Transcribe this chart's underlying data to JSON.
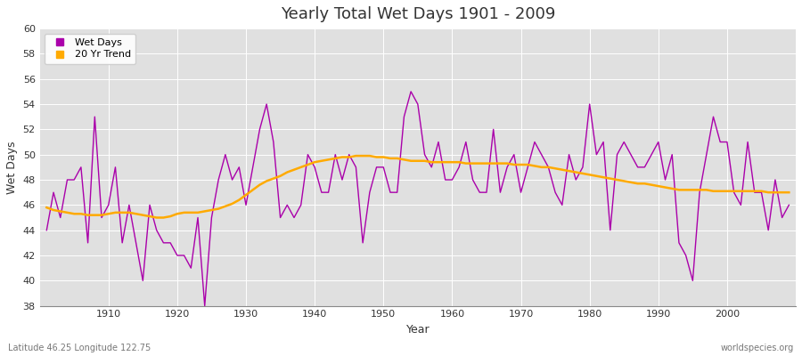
{
  "title": "Yearly Total Wet Days 1901 - 2009",
  "xlabel": "Year",
  "ylabel": "Wet Days",
  "footer_left": "Latitude 46.25 Longitude 122.75",
  "footer_right": "worldspecies.org",
  "ylim": [
    38,
    60
  ],
  "yticks": [
    38,
    40,
    42,
    44,
    46,
    48,
    50,
    52,
    54,
    56,
    58,
    60
  ],
  "xticks": [
    1910,
    1920,
    1930,
    1940,
    1950,
    1960,
    1970,
    1980,
    1990,
    2000
  ],
  "xlim": [
    1900,
    2010
  ],
  "line_color": "#aa00aa",
  "trend_color": "#ffaa00",
  "legend_wet": "Wet Days",
  "legend_trend": "20 Yr Trend",
  "bg_color": "#e0e0e0",
  "wet_days": [
    44,
    47,
    45,
    48,
    48,
    49,
    43,
    53,
    45,
    46,
    49,
    43,
    46,
    43,
    40,
    46,
    44,
    43,
    43,
    42,
    42,
    41,
    45,
    38,
    45,
    48,
    50,
    48,
    49,
    46,
    49,
    52,
    54,
    51,
    45,
    46,
    45,
    46,
    50,
    49,
    47,
    47,
    50,
    48,
    50,
    49,
    43,
    47,
    49,
    49,
    47,
    47,
    53,
    55,
    54,
    50,
    49,
    51,
    48,
    48,
    49,
    51,
    48,
    47,
    47,
    52,
    47,
    49,
    50,
    47,
    49,
    51,
    50,
    49,
    47,
    46,
    50,
    48,
    49,
    54,
    50,
    51,
    44,
    50,
    51,
    50,
    49,
    49,
    50,
    51,
    48,
    50,
    43,
    42,
    40,
    47,
    50,
    53,
    51,
    51,
    47,
    46,
    51,
    47,
    47,
    44,
    48,
    45,
    46
  ],
  "trend_years": [
    1901,
    1902,
    1903,
    1904,
    1905,
    1906,
    1907,
    1908,
    1909,
    1910,
    1911,
    1912,
    1913,
    1914,
    1915,
    1916,
    1917,
    1918,
    1919,
    1920,
    1921,
    1922,
    1923,
    1924,
    1925,
    1926,
    1927,
    1928,
    1929,
    1930,
    1931,
    1932,
    1933,
    1934,
    1935,
    1936,
    1937,
    1938,
    1939,
    1940,
    1941,
    1942,
    1943,
    1944,
    1945,
    1946,
    1947,
    1948,
    1949,
    1950,
    1951,
    1952,
    1953,
    1954,
    1955,
    1956,
    1957,
    1958,
    1959,
    1960,
    1961,
    1962,
    1963,
    1964,
    1965,
    1966,
    1967,
    1968,
    1969,
    1970,
    1971,
    1972,
    1973,
    1974,
    1975,
    1976,
    1977,
    1978,
    1979,
    1980,
    1981,
    1982,
    1983,
    1984,
    1985,
    1986,
    1987,
    1988,
    1989,
    1990,
    1991,
    1992,
    1993,
    1994,
    1995,
    1996,
    1997,
    1998,
    1999,
    2000,
    2001,
    2002,
    2003,
    2004,
    2005,
    2006,
    2007,
    2008,
    2009
  ],
  "trend_values": [
    45.8,
    45.6,
    45.5,
    45.4,
    45.3,
    45.3,
    45.2,
    45.2,
    45.2,
    45.3,
    45.4,
    45.4,
    45.4,
    45.3,
    45.2,
    45.1,
    45.0,
    45.0,
    45.1,
    45.3,
    45.4,
    45.4,
    45.4,
    45.5,
    45.6,
    45.7,
    45.9,
    46.1,
    46.4,
    46.8,
    47.2,
    47.6,
    47.9,
    48.1,
    48.3,
    48.6,
    48.8,
    49.0,
    49.2,
    49.4,
    49.5,
    49.6,
    49.7,
    49.8,
    49.8,
    49.9,
    49.9,
    49.9,
    49.8,
    49.8,
    49.7,
    49.7,
    49.6,
    49.5,
    49.5,
    49.5,
    49.4,
    49.4,
    49.4,
    49.4,
    49.4,
    49.3,
    49.3,
    49.3,
    49.3,
    49.3,
    49.3,
    49.3,
    49.2,
    49.2,
    49.2,
    49.1,
    49.0,
    49.0,
    48.9,
    48.8,
    48.7,
    48.6,
    48.5,
    48.4,
    48.3,
    48.2,
    48.1,
    48.0,
    47.9,
    47.8,
    47.7,
    47.7,
    47.6,
    47.5,
    47.4,
    47.3,
    47.2,
    47.2,
    47.2,
    47.2,
    47.2,
    47.1,
    47.1,
    47.1,
    47.1,
    47.1,
    47.1,
    47.1,
    47.1,
    47.0,
    47.0,
    47.0,
    47.0
  ]
}
